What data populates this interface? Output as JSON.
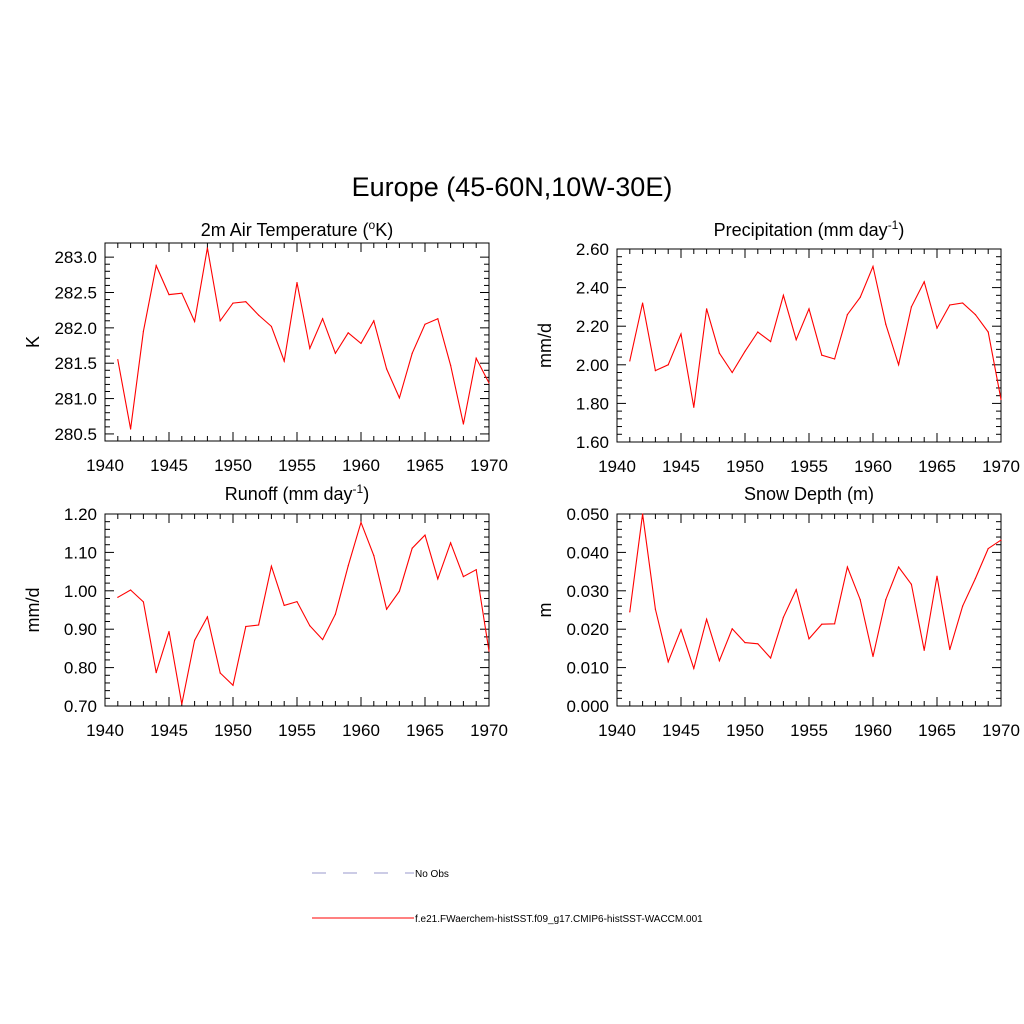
{
  "figure_title": "Europe (45-60N,10W-30E)",
  "colors": {
    "model": "#ff0000",
    "obs": "#9999cc",
    "axis": "#000000"
  },
  "legend": {
    "obs_label": "No Obs",
    "model_label": "f.e21.FWaerchem-histSST.f09_g17.CMIP6-histSST-WACCM.001"
  },
  "chart_data": [
    {
      "type": "line",
      "title_main": "2m Air Temperature (",
      "title_sup1": "o",
      "title_rest": "K)",
      "title_sup2": "",
      "title_end": "",
      "ylabel": "K",
      "xlim": [
        1940,
        1970
      ],
      "ylim": [
        280.4,
        283.2
      ],
      "yticks": [
        280.5,
        281.0,
        281.5,
        282.0,
        282.5,
        283.0
      ],
      "ytick_labels": [
        "280.5",
        "281.0",
        "281.5",
        "282.0",
        "282.5",
        "283.0"
      ],
      "xticks": [
        1940,
        1945,
        1950,
        1955,
        1960,
        1965,
        1970
      ],
      "xtick_labels": [
        "1940",
        "1945",
        "1950",
        "1955",
        "1960",
        "1965",
        "1970"
      ],
      "series": [
        {
          "x": [
            1941,
            1942,
            1943,
            1944,
            1945,
            1946,
            1947,
            1948,
            1949,
            1950,
            1951,
            1952,
            1953,
            1954,
            1955,
            1956,
            1957,
            1958,
            1959,
            1960,
            1961,
            1962,
            1963,
            1964,
            1965,
            1966,
            1967,
            1968,
            1969,
            1970
          ],
          "values": [
            281.55,
            280.57,
            281.95,
            282.88,
            282.47,
            282.49,
            282.09,
            283.13,
            282.1,
            282.35,
            282.37,
            282.18,
            282.02,
            281.53,
            282.64,
            281.71,
            282.13,
            281.64,
            281.93,
            281.78,
            282.1,
            281.42,
            281.01,
            281.64,
            282.05,
            282.13,
            281.47,
            280.64,
            281.57,
            281.22
          ]
        }
      ]
    },
    {
      "type": "line",
      "title_main": "Precipitation (mm day",
      "title_sup1": "-1",
      "title_rest": ")",
      "title_sup2": "",
      "title_end": "",
      "ylabel": "mm/d",
      "xlim": [
        1940,
        1970
      ],
      "ylim": [
        1.6,
        2.6
      ],
      "yticks": [
        1.6,
        1.8,
        2.0,
        2.2,
        2.4,
        2.6
      ],
      "ytick_labels": [
        "1.60",
        "1.80",
        "2.00",
        "2.20",
        "2.40",
        "2.60"
      ],
      "xticks": [
        1940,
        1945,
        1950,
        1955,
        1960,
        1965,
        1970
      ],
      "xtick_labels": [
        "1940",
        "1945",
        "1950",
        "1955",
        "1960",
        "1965",
        "1970"
      ],
      "series": [
        {
          "x": [
            1941,
            1942,
            1943,
            1944,
            1945,
            1946,
            1947,
            1948,
            1949,
            1950,
            1951,
            1952,
            1953,
            1954,
            1955,
            1956,
            1957,
            1958,
            1959,
            1960,
            1961,
            1962,
            1963,
            1964,
            1965,
            1966,
            1967,
            1968,
            1969,
            1970
          ],
          "values": [
            2.02,
            2.32,
            1.97,
            2.0,
            2.16,
            1.78,
            2.29,
            2.06,
            1.96,
            2.07,
            2.17,
            2.12,
            2.36,
            2.13,
            2.29,
            2.05,
            2.03,
            2.26,
            2.35,
            2.51,
            2.21,
            2.0,
            2.3,
            2.43,
            2.19,
            2.31,
            2.32,
            2.26,
            2.17,
            1.82
          ]
        }
      ]
    },
    {
      "type": "line",
      "title_main": "Runoff (mm day",
      "title_sup1": "-1",
      "title_rest": ")",
      "title_sup2": "",
      "title_end": "",
      "ylabel": "mm/d",
      "xlim": [
        1940,
        1970
      ],
      "ylim": [
        0.7,
        1.2
      ],
      "yticks": [
        0.7,
        0.8,
        0.9,
        1.0,
        1.1,
        1.2
      ],
      "ytick_labels": [
        "0.70",
        "0.80",
        "0.90",
        "1.00",
        "1.10",
        "1.20"
      ],
      "xticks": [
        1940,
        1945,
        1950,
        1955,
        1960,
        1965,
        1970
      ],
      "xtick_labels": [
        "1940",
        "1945",
        "1950",
        "1955",
        "1960",
        "1965",
        "1970"
      ],
      "series": [
        {
          "x": [
            1941,
            1942,
            1943,
            1944,
            1945,
            1946,
            1947,
            1948,
            1949,
            1950,
            1951,
            1952,
            1953,
            1954,
            1955,
            1956,
            1957,
            1958,
            1959,
            1960,
            1961,
            1962,
            1963,
            1964,
            1965,
            1966,
            1967,
            1968,
            1969,
            1970
          ],
          "values": [
            0.983,
            1.002,
            0.971,
            0.787,
            0.894,
            0.705,
            0.871,
            0.932,
            0.786,
            0.754,
            0.907,
            0.911,
            1.064,
            0.962,
            0.972,
            0.909,
            0.873,
            0.939,
            1.065,
            1.178,
            1.092,
            0.952,
            0.999,
            1.111,
            1.145,
            1.031,
            1.125,
            1.037,
            1.055,
            0.843
          ]
        }
      ]
    },
    {
      "type": "line",
      "title_main": "Snow Depth (m)",
      "title_sup1": "",
      "title_rest": "",
      "title_sup2": "",
      "title_end": "",
      "ylabel": "m",
      "xlim": [
        1940,
        1970
      ],
      "ylim": [
        0.0,
        0.05
      ],
      "yticks": [
        0.0,
        0.01,
        0.02,
        0.03,
        0.04,
        0.05
      ],
      "ytick_labels": [
        "0.000",
        "0.010",
        "0.020",
        "0.030",
        "0.040",
        "0.050"
      ],
      "xticks": [
        1940,
        1945,
        1950,
        1955,
        1960,
        1965,
        1970
      ],
      "xtick_labels": [
        "1940",
        "1945",
        "1950",
        "1955",
        "1960",
        "1965",
        "1970"
      ],
      "series": [
        {
          "x": [
            1941,
            1942,
            1943,
            1944,
            1945,
            1946,
            1947,
            1948,
            1949,
            1950,
            1951,
            1952,
            1953,
            1954,
            1955,
            1956,
            1957,
            1958,
            1959,
            1960,
            1961,
            1962,
            1963,
            1964,
            1965,
            1966,
            1967,
            1968,
            1969,
            1970
          ],
          "values": [
            0.0245,
            0.05,
            0.0252,
            0.0115,
            0.0199,
            0.0098,
            0.0226,
            0.0118,
            0.0201,
            0.0165,
            0.0162,
            0.0125,
            0.0231,
            0.0303,
            0.0175,
            0.0213,
            0.0214,
            0.0362,
            0.0277,
            0.0129,
            0.0277,
            0.0362,
            0.0317,
            0.0145,
            0.0338,
            0.0147,
            0.026,
            0.0332,
            0.041,
            0.0432
          ]
        }
      ]
    }
  ]
}
